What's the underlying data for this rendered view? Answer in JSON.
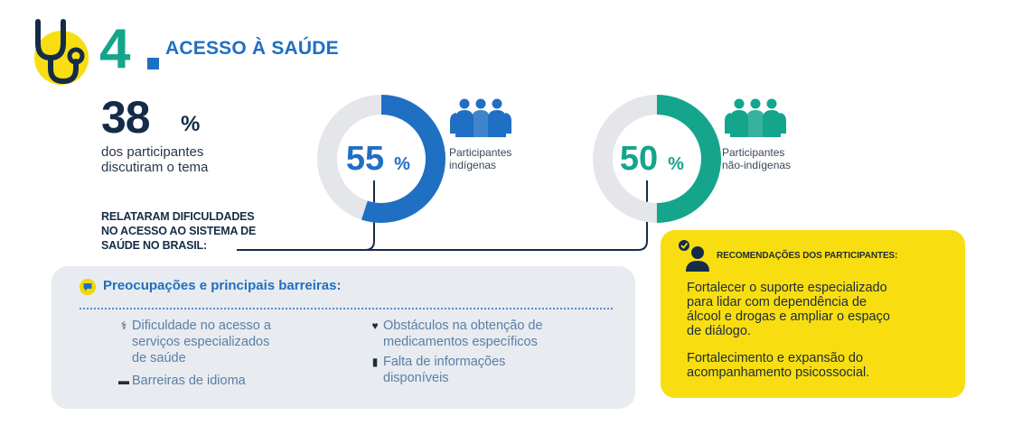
{
  "header": {
    "number": "4",
    "title": "ACESSO À SAÚDE",
    "icon": "stethoscope-icon",
    "icon_bg": "#f8de10",
    "accent_green": "#14a58c",
    "accent_blue": "#1f6fc2"
  },
  "stat": {
    "value": "38",
    "unit": "%",
    "text_lines": [
      "dos participantes",
      "discutiram o tema"
    ]
  },
  "report_lines": [
    "RELATARAM DIFICULDADES",
    "NO ACESSO AO SISTEMA DE",
    "SAÚDE NO BRASIL:"
  ],
  "donuts": [
    {
      "value": "55",
      "unit": "%",
      "fraction": 0.55,
      "color": "#1f6fc2",
      "label_lines": [
        "Participantes",
        "indígenas"
      ],
      "icon": "people-group-icon"
    },
    {
      "value": "50",
      "unit": "%",
      "fraction": 0.5,
      "color": "#14a58c",
      "label_lines": [
        "Participantes",
        "não-indígenas"
      ],
      "icon": "people-group-icon"
    }
  ],
  "concerns": {
    "title": "Preocupações e principais barreiras:",
    "items": [
      {
        "icon": "stethoscope-icon",
        "lines": [
          "Dificuldade no acesso a",
          "serviços especializados",
          "de saúde"
        ]
      },
      {
        "icon": "chat-icon",
        "lines": [
          "Barreiras de idioma"
        ]
      },
      {
        "icon": "heart-icon",
        "lines": [
          "Obstáculos na obtenção de",
          "medicamentos específicos"
        ]
      },
      {
        "icon": "document-icon",
        "lines": [
          "Falta de informações",
          "disponíveis"
        ]
      }
    ]
  },
  "recommendations": {
    "title": "RECOMENDAÇÕES DOS PARTICIPANTES:",
    "icon": "person-check-icon",
    "paragraphs": [
      [
        "Fortalecer o suporte especializado",
        "para lidar com dependência de",
        "álcool e drogas e ampliar o espaço",
        "de diálogo."
      ],
      [
        "Fortalecimento e expansão do",
        "acompanhamento psicossocial."
      ]
    ]
  }
}
